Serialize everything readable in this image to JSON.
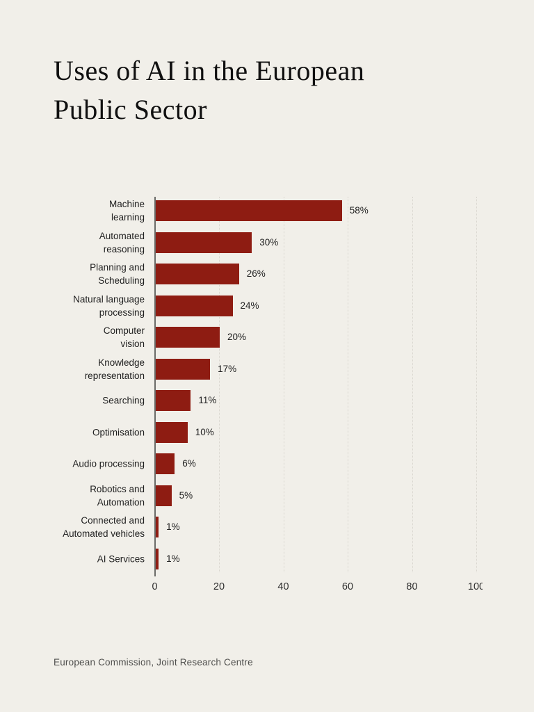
{
  "page": {
    "background_color": "#f1efe9",
    "title": "Uses of AI in the European Public Sector",
    "source": "European Commission, Joint Research Centre"
  },
  "chart_data": {
    "type": "bar",
    "orientation": "horizontal",
    "title": "Uses of AI in the European Public Sector",
    "xlabel": "",
    "ylabel": "",
    "xlim": [
      0,
      100
    ],
    "xticks": [
      0,
      20,
      40,
      60,
      80,
      100
    ],
    "grid": "vertical dotted gridlines at each x tick",
    "legend": "none",
    "bar_color": "#8e1c12",
    "categories": [
      "Machine\nlearning",
      "Automated\nreasoning",
      "Planning and\nScheduling",
      "Natural language\nprocessing",
      "Computer\nvision",
      "Knowledge\nrepresentation",
      "Searching",
      "Optimisation",
      "Audio processing",
      "Robotics and\nAutomation",
      "Connected and\nAutomated vehicles",
      "AI Services"
    ],
    "values": [
      58,
      30,
      26,
      24,
      20,
      17,
      11,
      10,
      6,
      5,
      1,
      1
    ],
    "value_labels": [
      "58%",
      "30%",
      "26%",
      "24%",
      "20%",
      "17%",
      "11%",
      "10%",
      "6%",
      "5%",
      "1%",
      "1%"
    ]
  }
}
